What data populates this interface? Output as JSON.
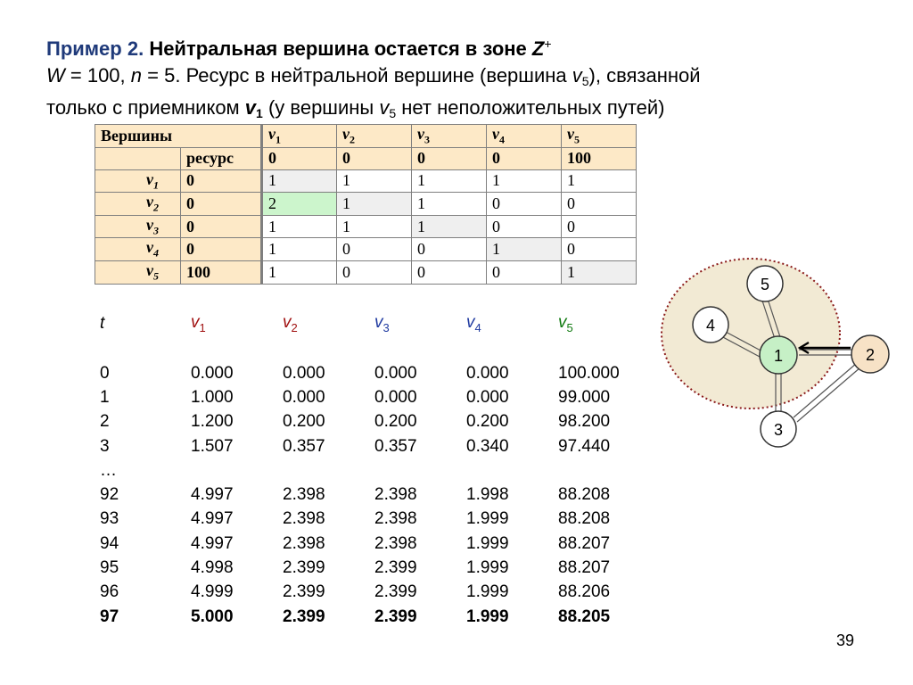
{
  "title": {
    "label": "Пример 2.",
    "heading": "Нейтральная вершина остается в зоне",
    "zone": "Z",
    "zone_sup": "+",
    "line2": {
      "w_var": "W",
      "w_eq": " = 100, ",
      "n_var": "n",
      "n_eq": " = 5.  Ресурс в нейтральной вершине (вершина ",
      "v_var": "v",
      "v_sub": "5",
      "tail": "), связанной"
    },
    "line3": {
      "pre": "только с приемником ",
      "v_var": "v",
      "v_sub": "1",
      "mid": " (у вершины ",
      "v2_var": "v",
      "v2_sub": "5",
      "tail": " нет неположительных путей)"
    }
  },
  "matrix": {
    "header_label": "Вершины",
    "resource_label": "ресурс",
    "columns": [
      "v1",
      "v2",
      "v3",
      "v4",
      "v5"
    ],
    "resources": [
      "0",
      "0",
      "0",
      "0",
      "100"
    ],
    "rows": [
      {
        "name": "v1",
        "res": "0",
        "cells": [
          "1",
          "1",
          "1",
          "1",
          "1"
        ]
      },
      {
        "name": "v2",
        "res": "0",
        "cells": [
          "2",
          "1",
          "1",
          "0",
          "0"
        ]
      },
      {
        "name": "v3",
        "res": "0",
        "cells": [
          "1",
          "1",
          "1",
          "0",
          "0"
        ]
      },
      {
        "name": "v4",
        "res": "0",
        "cells": [
          "1",
          "0",
          "0",
          "1",
          "0"
        ]
      },
      {
        "name": "v5",
        "res": "100",
        "cells": [
          "1",
          "0",
          "0",
          "0",
          "1"
        ]
      }
    ]
  },
  "series_table": {
    "header": {
      "t": "t",
      "v1": "v",
      "v1_sub": "1",
      "v2": "v",
      "v2_sub": "2",
      "v3": "v",
      "v3_sub": "3",
      "v4": "v",
      "v4_sub": "4",
      "v5": "v",
      "v5_sub": "5"
    },
    "rows": [
      [
        "0",
        "0.000",
        "0.000",
        "0.000",
        "0.000",
        "100.000"
      ],
      [
        "1",
        "1.000",
        "0.000",
        "0.000",
        "0.000",
        "99.000"
      ],
      [
        "2",
        "1.200",
        "0.200",
        "0.200",
        "0.200",
        "98.200"
      ],
      [
        "3",
        "1.507",
        "0.357",
        "0.357",
        "0.340",
        "97.440"
      ],
      [
        "…",
        "",
        "",
        "",
        "",
        ""
      ],
      [
        "92",
        "4.997",
        "2.398",
        "2.398",
        "1.998",
        "88.208"
      ],
      [
        "93",
        "4.997",
        "2.398",
        "2.398",
        "1.999",
        "88.208"
      ],
      [
        "94",
        "4.997",
        "2.398",
        "2.398",
        "1.999",
        "88.207"
      ],
      [
        "95",
        "4.998",
        "2.399",
        "2.399",
        "1.999",
        "88.207"
      ],
      [
        "96",
        "4.999",
        "2.399",
        "2.399",
        "1.999",
        "88.206"
      ],
      [
        "97",
        "5.000",
        "2.399",
        "2.399",
        "1.999",
        "88.205"
      ]
    ]
  },
  "graph": {
    "nodes": [
      "1",
      "2",
      "3",
      "4",
      "5"
    ],
    "colors": {
      "zone_fill": "#f2ead4",
      "zone_border": "#8b1a1a",
      "node1_fill": "#c6f0c6",
      "node2_fill": "#f7e2c6",
      "node_fill": "#ffffff"
    }
  },
  "page_number": "39"
}
